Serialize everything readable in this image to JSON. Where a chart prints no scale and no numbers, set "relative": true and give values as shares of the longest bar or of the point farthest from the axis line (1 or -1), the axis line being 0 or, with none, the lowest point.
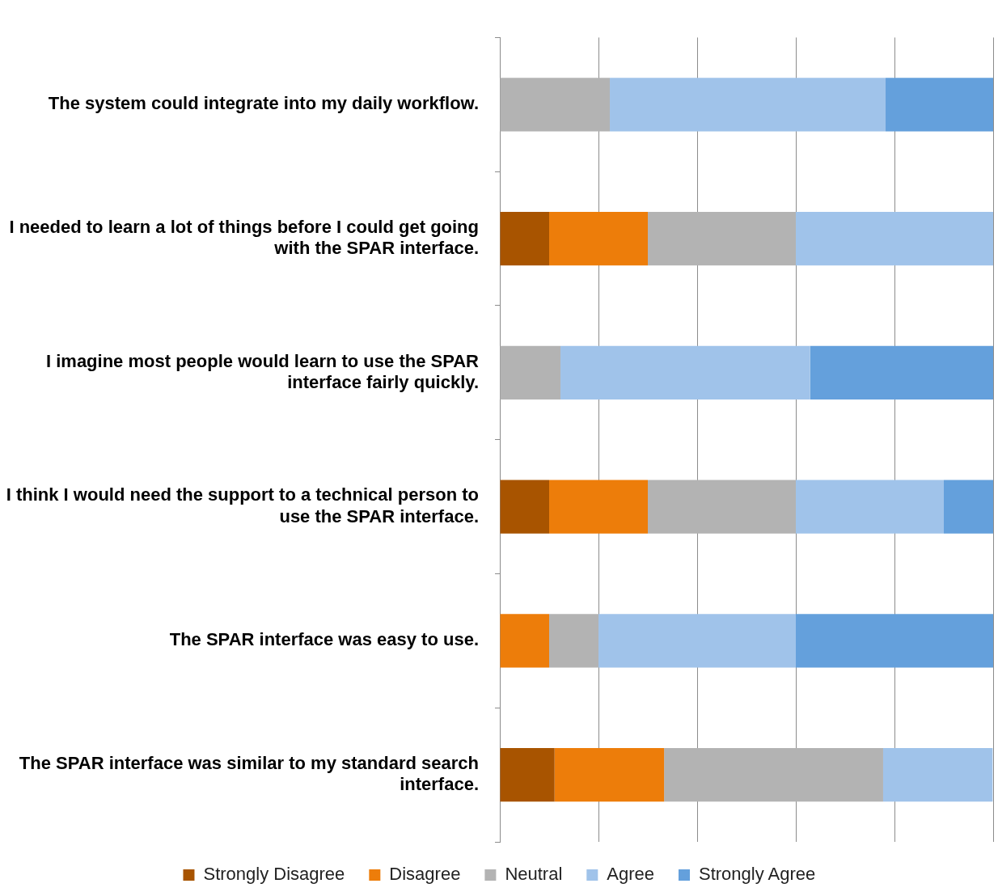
{
  "chart_data": {
    "type": "bar",
    "orientation": "horizontal",
    "stacked": true,
    "relative": true,
    "grid": "x",
    "legend": "bottom",
    "categories": [
      "The system could integrate into my daily workflow.",
      "I needed to learn a lot of things before I could get going with the SPAR interface.",
      "I imagine most people would learn to use the SPAR interface fairly quickly.",
      "I think I would need the support to a technical person to use the SPAR interface.",
      "The SPAR interface was easy to use.",
      "The SPAR interface was similar to my standard search interface."
    ],
    "series": [
      {
        "name": "Strongly Disagree",
        "color": "#a85400",
        "values": [
          0,
          0.1,
          0,
          0.1,
          0,
          0.111
        ]
      },
      {
        "name": "Disagree",
        "color": "#ed7d0a",
        "values": [
          0,
          0.2,
          0,
          0.2,
          0.1,
          0.222
        ]
      },
      {
        "name": "Neutral",
        "color": "#b3b3b3",
        "values": [
          0.223,
          0.3,
          0.123,
          0.3,
          0.1,
          0.444
        ]
      },
      {
        "name": "Agree",
        "color": "#a0c3ea",
        "values": [
          0.559,
          0.4,
          0.506,
          0.3,
          0.4,
          0.222
        ]
      },
      {
        "name": "Strongly Agree",
        "color": "#64a0dc",
        "values": [
          0.218,
          0,
          0.371,
          0.1,
          0.4,
          0
        ]
      }
    ]
  }
}
